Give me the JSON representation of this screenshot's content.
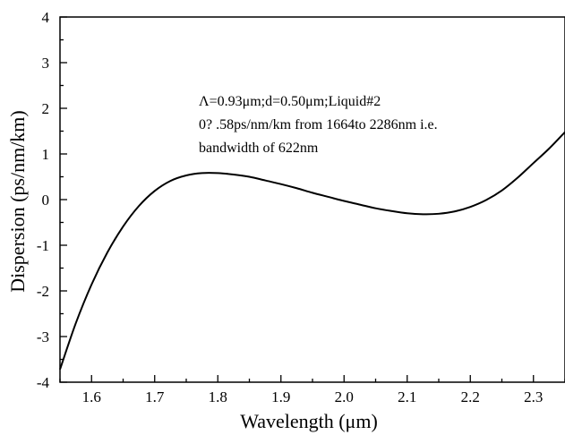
{
  "chart_data": {
    "type": "line",
    "xlabel": "Wavelength (μm)",
    "ylabel": "Dispersion (ps/nm/km)",
    "xlim": [
      1.55,
      2.35
    ],
    "ylim": [
      -4,
      4
    ],
    "x_ticks": [
      "1.6",
      "1.7",
      "1.8",
      "1.9",
      "2.0",
      "2.1",
      "2.2",
      "2.3"
    ],
    "y_ticks": [
      "-4",
      "-3",
      "-2",
      "-1",
      "0",
      "1",
      "2",
      "3",
      "4"
    ],
    "grid": false,
    "annotation": [
      "Λ=0.93μm;d=0.50μm;Liquid#2",
      "0?  .58ps/nm/km from 1664to 2286nm i.e.",
      "bandwidth of 622nm"
    ],
    "series": [
      {
        "x": [
          1.55,
          1.575,
          1.6,
          1.625,
          1.65,
          1.675,
          1.7,
          1.725,
          1.75,
          1.775,
          1.8,
          1.825,
          1.85,
          1.875,
          1.9,
          1.925,
          1.95,
          1.975,
          2.0,
          2.025,
          2.05,
          2.075,
          2.1,
          2.125,
          2.15,
          2.175,
          2.2,
          2.225,
          2.25,
          2.275,
          2.3,
          2.325,
          2.35
        ],
        "y": [
          -3.72,
          -2.71,
          -1.86,
          -1.16,
          -0.59,
          -0.14,
          0.19,
          0.41,
          0.53,
          0.58,
          0.58,
          0.55,
          0.5,
          0.42,
          0.34,
          0.25,
          0.15,
          0.06,
          -0.03,
          -0.11,
          -0.19,
          -0.25,
          -0.3,
          -0.32,
          -0.31,
          -0.26,
          -0.16,
          -0.01,
          0.2,
          0.48,
          0.8,
          1.12,
          1.48
        ]
      }
    ]
  }
}
